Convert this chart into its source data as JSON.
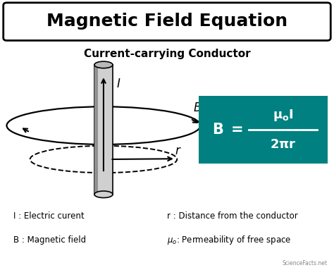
{
  "title": "Magnetic Field Equation",
  "subtitle": "Current-carrying Conductor",
  "bg_color": "#ffffff",
  "teal_box_color": "#008080",
  "legend_items": [
    [
      "I : Electric curent",
      "r : Distance from the conductor"
    ],
    [
      "B : Magnetic field",
      "μ₀: Permeability of free space"
    ]
  ],
  "label_I": "I",
  "label_B": "B",
  "label_r": "r",
  "conductor_gray": "#d0d0d0",
  "conductor_dark": "#909090",
  "conductor_top": "#b8b8b8"
}
